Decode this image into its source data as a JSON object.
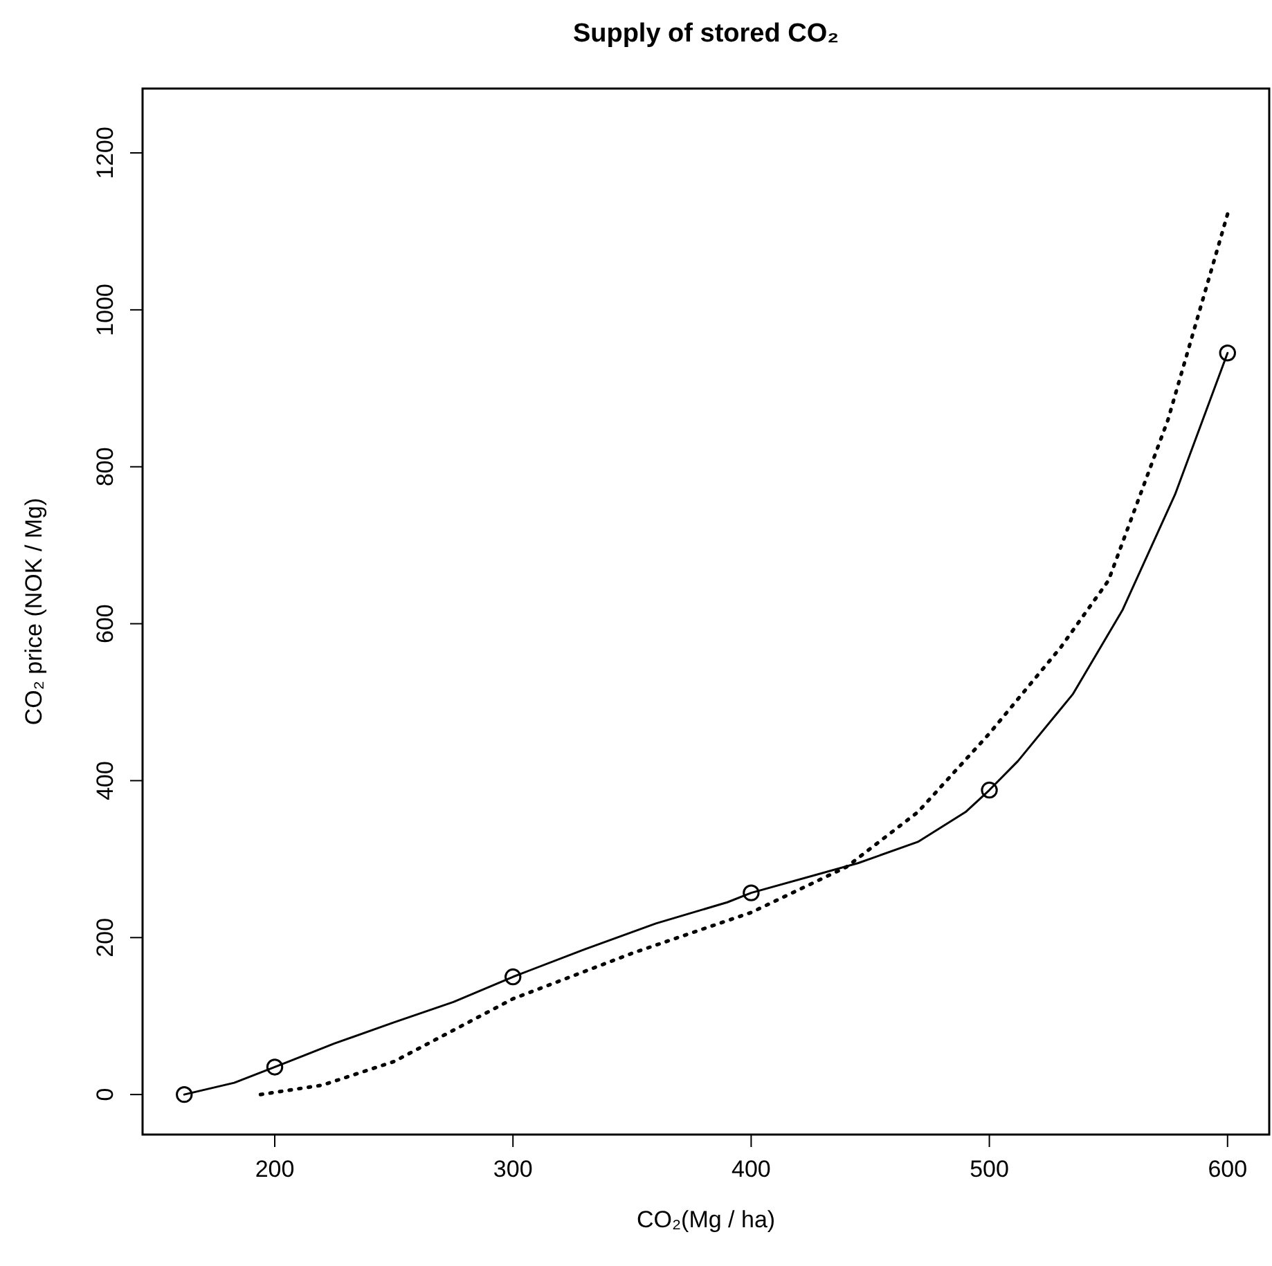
{
  "chart_data": {
    "type": "line",
    "title": "Supply of stored CO₂",
    "xlabel": "CO₂(Mg / ha)",
    "ylabel": "CO₂ price (NOK / Mg)",
    "xlim": [
      144.5,
      617.5
    ],
    "ylim": [
      -51,
      1282
    ],
    "xticks": [
      200,
      300,
      400,
      500,
      600
    ],
    "yticks": [
      0,
      200,
      400,
      600,
      800,
      1000,
      1200
    ],
    "grid": false,
    "series": [
      {
        "color": "#000000",
        "line_style": "solid",
        "marker": "none",
        "x": [
          162,
          183,
          200,
          225,
          250,
          275,
          300,
          330,
          360,
          390,
          400,
          445,
          470,
          490,
          500,
          512,
          535,
          556,
          578,
          600
        ],
        "values": [
          0,
          15,
          35,
          65,
          92,
          118,
          150,
          185,
          218,
          245,
          257,
          295,
          322,
          360,
          388,
          425,
          510,
          618,
          765,
          945
        ]
      },
      {
        "type": "scatter",
        "color": "#000000",
        "marker": "circle",
        "x": [
          162,
          200,
          300,
          400,
          500,
          600
        ],
        "values": [
          0,
          35,
          150,
          257,
          388,
          945
        ]
      },
      {
        "color": "#000000",
        "line_style": "dotted",
        "marker": "none",
        "x": [
          194,
          220,
          250,
          300,
          350,
          400,
          440,
          470,
          500,
          530,
          550,
          575,
          600
        ],
        "values": [
          0,
          12,
          42,
          122,
          180,
          232,
          290,
          360,
          460,
          570,
          655,
          860,
          1122
        ]
      }
    ]
  }
}
